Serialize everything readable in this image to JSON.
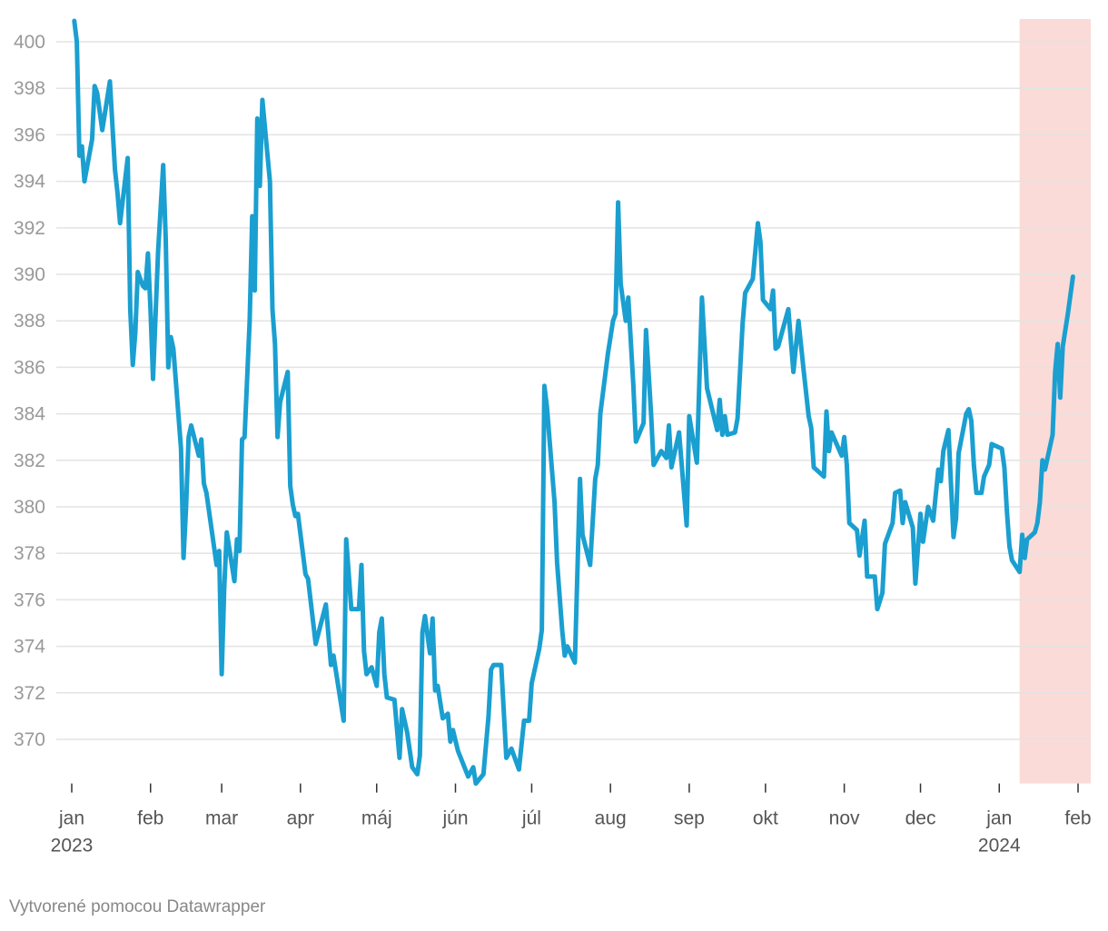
{
  "chart_data": {
    "type": "line",
    "credit": "Vytvorené pomocou Datawrapper",
    "x": [
      1,
      2,
      3,
      4,
      5,
      8,
      9,
      10,
      12,
      15,
      17,
      18,
      19,
      22,
      23,
      24,
      25,
      26,
      28,
      29,
      30,
      31,
      32,
      34,
      36,
      37,
      38,
      39,
      40,
      43,
      44,
      45,
      46,
      47,
      50,
      51,
      52,
      53,
      57,
      58,
      59,
      60,
      61,
      64,
      65,
      66,
      67,
      68,
      70,
      71,
      72,
      73,
      74,
      75,
      78,
      79,
      80,
      81,
      82,
      85,
      86,
      87,
      88,
      89,
      92,
      93,
      96,
      100,
      102,
      103,
      107,
      108,
      110,
      113,
      114,
      115,
      116,
      118,
      120,
      121,
      122,
      123,
      124,
      127,
      129,
      130,
      132,
      134,
      136,
      137,
      138,
      139,
      141,
      142,
      143,
      144,
      146,
      148,
      149,
      150,
      152,
      156,
      158,
      159,
      162,
      164,
      165,
      166,
      169,
      171,
      173,
      176,
      178,
      180,
      181,
      184,
      185,
      186,
      187,
      190,
      191,
      193,
      194,
      195,
      198,
      200,
      201,
      204,
      206,
      207,
      208,
      211,
      213,
      214,
      215,
      216,
      218,
      219,
      221,
      222,
      225,
      226,
      228,
      229,
      232,
      234,
      235,
      236,
      239,
      242,
      243,
      246,
      248,
      250,
      254,
      255,
      256,
      257,
      258,
      261,
      262,
      264,
      265,
      268,
      270,
      271,
      272,
      275,
      276,
      277,
      278,
      282,
      284,
      286,
      288,
      290,
      291,
      292,
      296,
      297,
      298,
      299,
      303,
      304,
      305,
      306,
      309,
      310,
      312,
      313,
      316,
      317,
      319,
      320,
      323,
      324,
      326,
      327,
      328,
      331,
      332,
      334,
      335,
      337,
      339,
      341,
      342,
      343,
      345,
      347,
      348,
      349,
      352,
      353,
      354,
      355,
      356,
      358,
      359,
      361,
      362,
      366,
      367,
      368,
      369,
      370,
      373,
      374,
      375,
      376,
      379,
      380,
      381,
      382,
      383,
      386,
      387,
      388,
      389,
      390,
      392,
      394
    ],
    "series": [
      {
        "color": "#1a9fd0",
        "values": [
          400.9,
          400.0,
          395.1,
          395.5,
          394.0,
          395.8,
          398.1,
          397.8,
          396.2,
          398.3,
          394.5,
          393.5,
          392.2,
          395.0,
          388.5,
          386.1,
          387.5,
          390.1,
          389.5,
          389.4,
          390.9,
          388.5,
          385.5,
          391.0,
          394.7,
          391.5,
          386.0,
          387.3,
          386.8,
          382.5,
          377.8,
          380.0,
          383.0,
          383.5,
          382.2,
          382.9,
          381.0,
          380.6,
          377.5,
          378.1,
          372.8,
          376.5,
          378.9,
          376.8,
          378.6,
          378.1,
          382.9,
          383.0,
          388.0,
          392.5,
          389.3,
          396.7,
          393.8,
          397.5,
          394.0,
          388.5,
          387.0,
          383.0,
          384.5,
          385.8,
          380.9,
          380.1,
          379.6,
          379.7,
          377.1,
          376.9,
          374.1,
          375.8,
          373.2,
          373.6,
          370.8,
          378.6,
          375.6,
          375.6,
          377.5,
          373.8,
          372.8,
          373.1,
          372.3,
          374.6,
          375.2,
          372.8,
          371.8,
          371.7,
          369.2,
          371.3,
          370.3,
          368.8,
          368.5,
          369.3,
          374.6,
          375.3,
          373.7,
          375.2,
          372.1,
          372.3,
          370.9,
          371.1,
          369.9,
          370.4,
          369.5,
          368.4,
          368.8,
          368.1,
          368.5,
          371.0,
          373.0,
          373.2,
          373.2,
          369.2,
          369.6,
          368.7,
          370.8,
          370.8,
          372.4,
          373.9,
          374.7,
          385.2,
          384.3,
          380.2,
          377.6,
          374.7,
          373.6,
          374.0,
          373.3,
          381.2,
          378.8,
          377.5,
          381.2,
          381.8,
          384.0,
          386.6,
          388.0,
          388.3,
          393.1,
          389.6,
          388.0,
          389.0,
          385.2,
          382.8,
          383.6,
          387.6,
          384.0,
          381.8,
          382.4,
          382.1,
          383.5,
          381.7,
          383.2,
          379.2,
          383.9,
          381.9,
          389.0,
          385.1,
          383.3,
          384.6,
          383.1,
          383.9,
          383.1,
          383.2,
          383.8,
          387.9,
          389.2,
          389.8,
          392.2,
          391.4,
          388.9,
          388.5,
          389.3,
          386.8,
          386.9,
          388.5,
          385.8,
          388.0,
          385.9,
          383.9,
          383.4,
          381.7,
          381.3,
          384.1,
          382.4,
          383.2,
          382.2,
          383.0,
          381.8,
          379.3,
          379.0,
          377.9,
          379.4,
          377.0,
          377.0,
          375.6,
          376.3,
          378.4,
          379.3,
          380.6,
          380.7,
          379.3,
          380.2,
          379.1,
          376.7,
          379.7,
          378.5,
          380.0,
          379.4,
          381.6,
          381.1,
          382.4,
          383.3,
          378.7,
          379.5,
          382.3,
          384.0,
          384.2,
          383.7,
          381.8,
          380.6,
          380.6,
          381.3,
          381.8,
          382.7,
          382.5,
          381.7,
          379.8,
          378.3,
          377.7,
          377.2,
          378.8,
          377.8,
          378.6,
          378.9,
          379.3,
          380.2,
          382.0,
          381.6,
          383.1,
          385.8,
          387.0,
          384.7,
          386.9,
          388.3,
          389.9
        ]
      }
    ],
    "highlight": {
      "range": [
        373,
        401
      ],
      "color": "#fadbd8"
    },
    "xlim": [
      0,
      401
    ],
    "xticks": [
      {
        "value": 0,
        "label": "jan 2023"
      },
      {
        "value": 31,
        "label": "feb"
      },
      {
        "value": 59,
        "label": "mar"
      },
      {
        "value": 90,
        "label": "apr"
      },
      {
        "value": 120,
        "label": "máj"
      },
      {
        "value": 151,
        "label": "jún"
      },
      {
        "value": 181,
        "label": "júl"
      },
      {
        "value": 212,
        "label": "aug"
      },
      {
        "value": 243,
        "label": "sep"
      },
      {
        "value": 273,
        "label": "okt"
      },
      {
        "value": 304,
        "label": "nov"
      },
      {
        "value": 334,
        "label": "dec"
      },
      {
        "value": 365,
        "label": "jan 2024"
      },
      {
        "value": 396,
        "label": "feb"
      }
    ],
    "ylim": [
      368.1,
      400.9
    ],
    "yticks": [
      370,
      372,
      374,
      376,
      378,
      380,
      382,
      384,
      386,
      388,
      390,
      392,
      394,
      396,
      398,
      400
    ],
    "grid": true
  }
}
